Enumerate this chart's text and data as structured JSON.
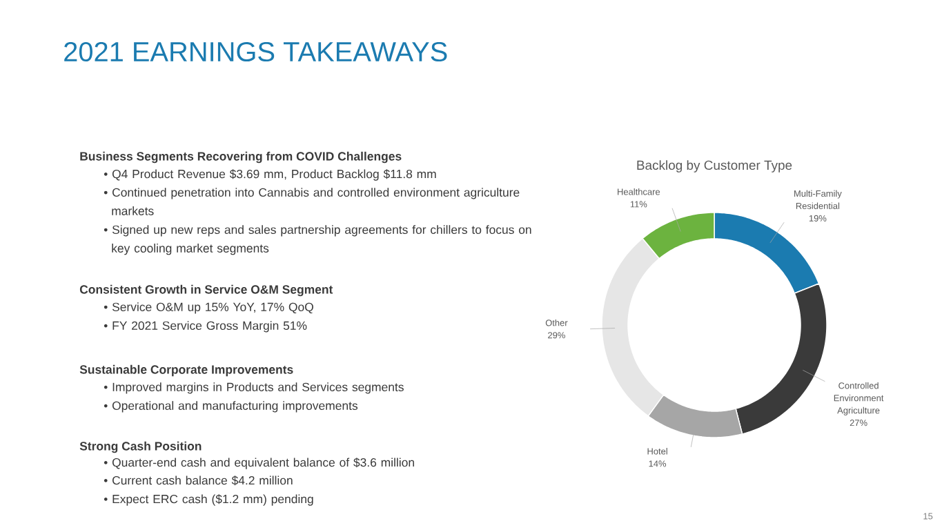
{
  "chart_data": {
    "type": "donut",
    "title": "Backlog by Customer Type",
    "categories": [
      "Multi-Family Residential",
      "Controlled Environment Agriculture",
      "Hotel",
      "Other",
      "Healthcare"
    ],
    "values": [
      19,
      27,
      14,
      29,
      11
    ],
    "colors": [
      "#1b7bb0",
      "#3a3a3a",
      "#a6a6a6",
      "#e6e6e6",
      "#6cb33f"
    ],
    "value_labels": [
      "19%",
      "27%",
      "14%",
      "29%",
      "11%"
    ],
    "annotations": [
      "2021 EARNINGS TAKEAWAYS",
      "Business Segments Recovering from COVID Challenges",
      "• Q4 Product Revenue $3.69 mm, Product Backlog $11.8 mm",
      "• Continued penetration into Cannabis and controlled environment agriculture markets",
      "• Signed up new reps and sales partnership agreements for chillers to focus on key cooling market segments",
      "Consistent Growth in Service O&M Segment",
      "• Service O&M up 15% YoY, 17% QoQ",
      "• FY 2021 Service Gross Margin 51%",
      "Sustainable Corporate Improvements",
      "• Improved margins in Products and Services segments",
      "• Operational and manufacturing improvements",
      "Strong Cash Position",
      "• Quarter-end cash and equivalent balance of $3.6 million",
      "• Current cash balance $4.2 million",
      "• Expect ERC cash ($1.2 mm) pending",
      "15"
    ]
  }
}
